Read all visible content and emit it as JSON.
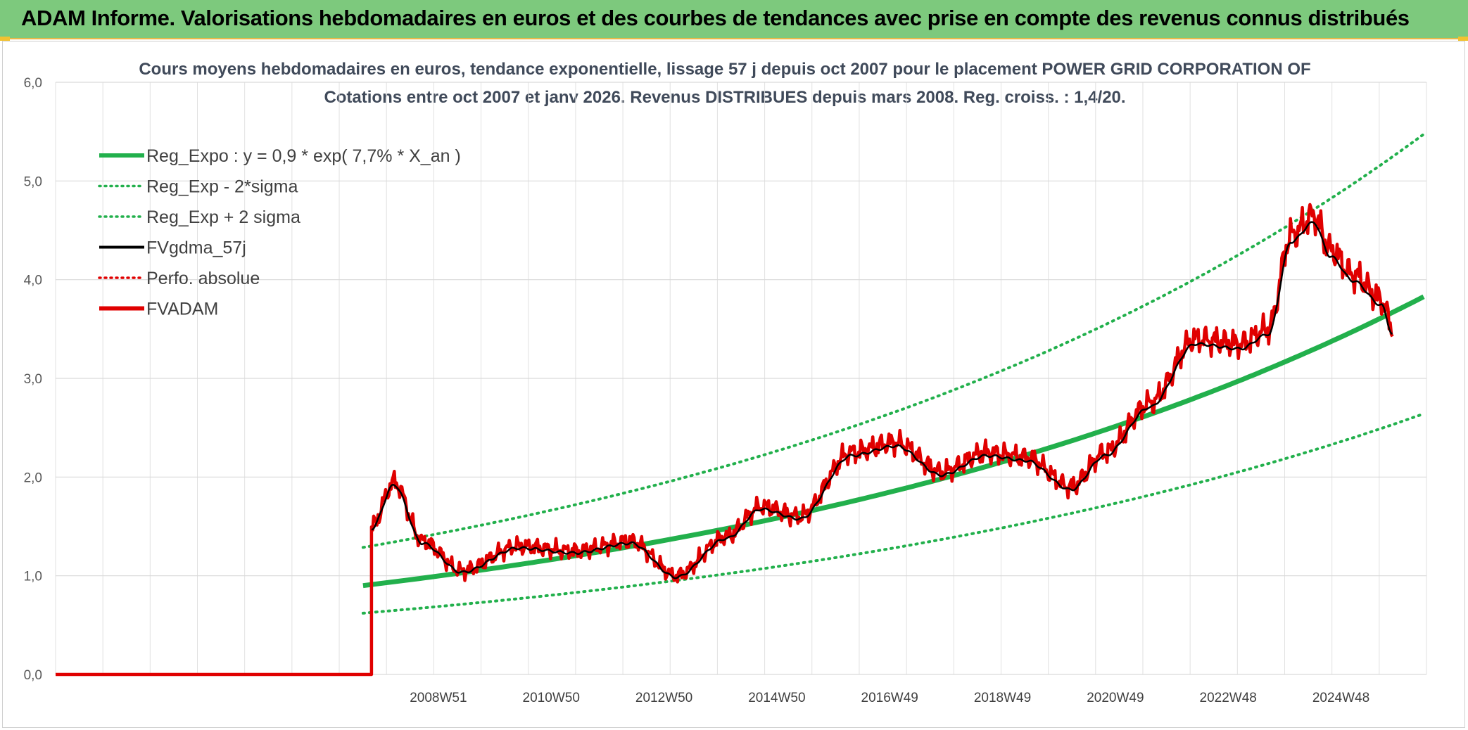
{
  "banner": {
    "title": "ADAM Informe. Valorisations hebdomadaires en euros et des courbes de tendances avec prise en compte des revenus connus distribués"
  },
  "chart_data": {
    "type": "line",
    "title": "Cours moyens hebdomadaires en euros, tendance exponentielle, lissage 57 j depuis oct 2007 pour le placement POWER GRID CORPORATION OF",
    "subtitle": "Cotations entre oct 2007 et janv 2026. Revenus DISTRIBUES depuis mars 2008. Reg. croiss. : 1,4/20.",
    "ylim": [
      0,
      6
    ],
    "yticks": [
      "0,0",
      "1,0",
      "2,0",
      "3,0",
      "4,0",
      "5,0",
      "6,0"
    ],
    "xticks": [
      "2008W51",
      "2010W50",
      "2012W50",
      "2014W50",
      "2016W49",
      "2018W49",
      "2020W49",
      "2022W48",
      "2024W48"
    ],
    "grid": true,
    "legend_position": "top-left",
    "legend": [
      {
        "label": "Reg_Expo : y = 0,9 * exp( 7,7% *  X_an )",
        "color": "#22b04c",
        "style": "solid-thick"
      },
      {
        "label": "Reg_Exp - 2*sigma",
        "color": "#22b04c",
        "style": "dotted"
      },
      {
        "label": "Reg_Exp + 2 sigma",
        "color": "#22b04c",
        "style": "dotted"
      },
      {
        "label": "FVgdma_57j",
        "color": "#000000",
        "style": "solid"
      },
      {
        "label": "Perfo. absolue",
        "color": "#e00000",
        "style": "dotted"
      },
      {
        "label": "FVADAM",
        "color": "#e00000",
        "style": "solid-thick"
      }
    ],
    "series_years": [
      2007.9,
      2008.3,
      2008.8,
      2009.5,
      2010.5,
      2011.5,
      2012.5,
      2013.3,
      2014.2,
      2014.8,
      2015.5,
      2016.4,
      2017.2,
      2018.0,
      2018.8,
      2019.5,
      2020.3,
      2020.9,
      2021.7,
      2022.5,
      2023.3,
      2023.8,
      2024.2,
      2024.6,
      2024.9,
      2025.3,
      2025.8,
      2026.0
    ],
    "series_values": [
      1.5,
      1.95,
      1.35,
      1.05,
      1.3,
      1.25,
      1.35,
      1.0,
      1.4,
      1.7,
      1.6,
      2.25,
      2.35,
      2.05,
      2.25,
      2.2,
      1.9,
      2.25,
      2.75,
      3.4,
      3.35,
      3.5,
      4.45,
      4.65,
      4.3,
      4.05,
      3.8,
      3.5
    ],
    "regression": {
      "a": 0.9,
      "rate": 0.077,
      "start_year": 2007.75,
      "end_year": 2026.6,
      "sigma_factor_low": 0.69,
      "sigma_factor_high": 1.43
    },
    "history_start_value": 0.0
  }
}
